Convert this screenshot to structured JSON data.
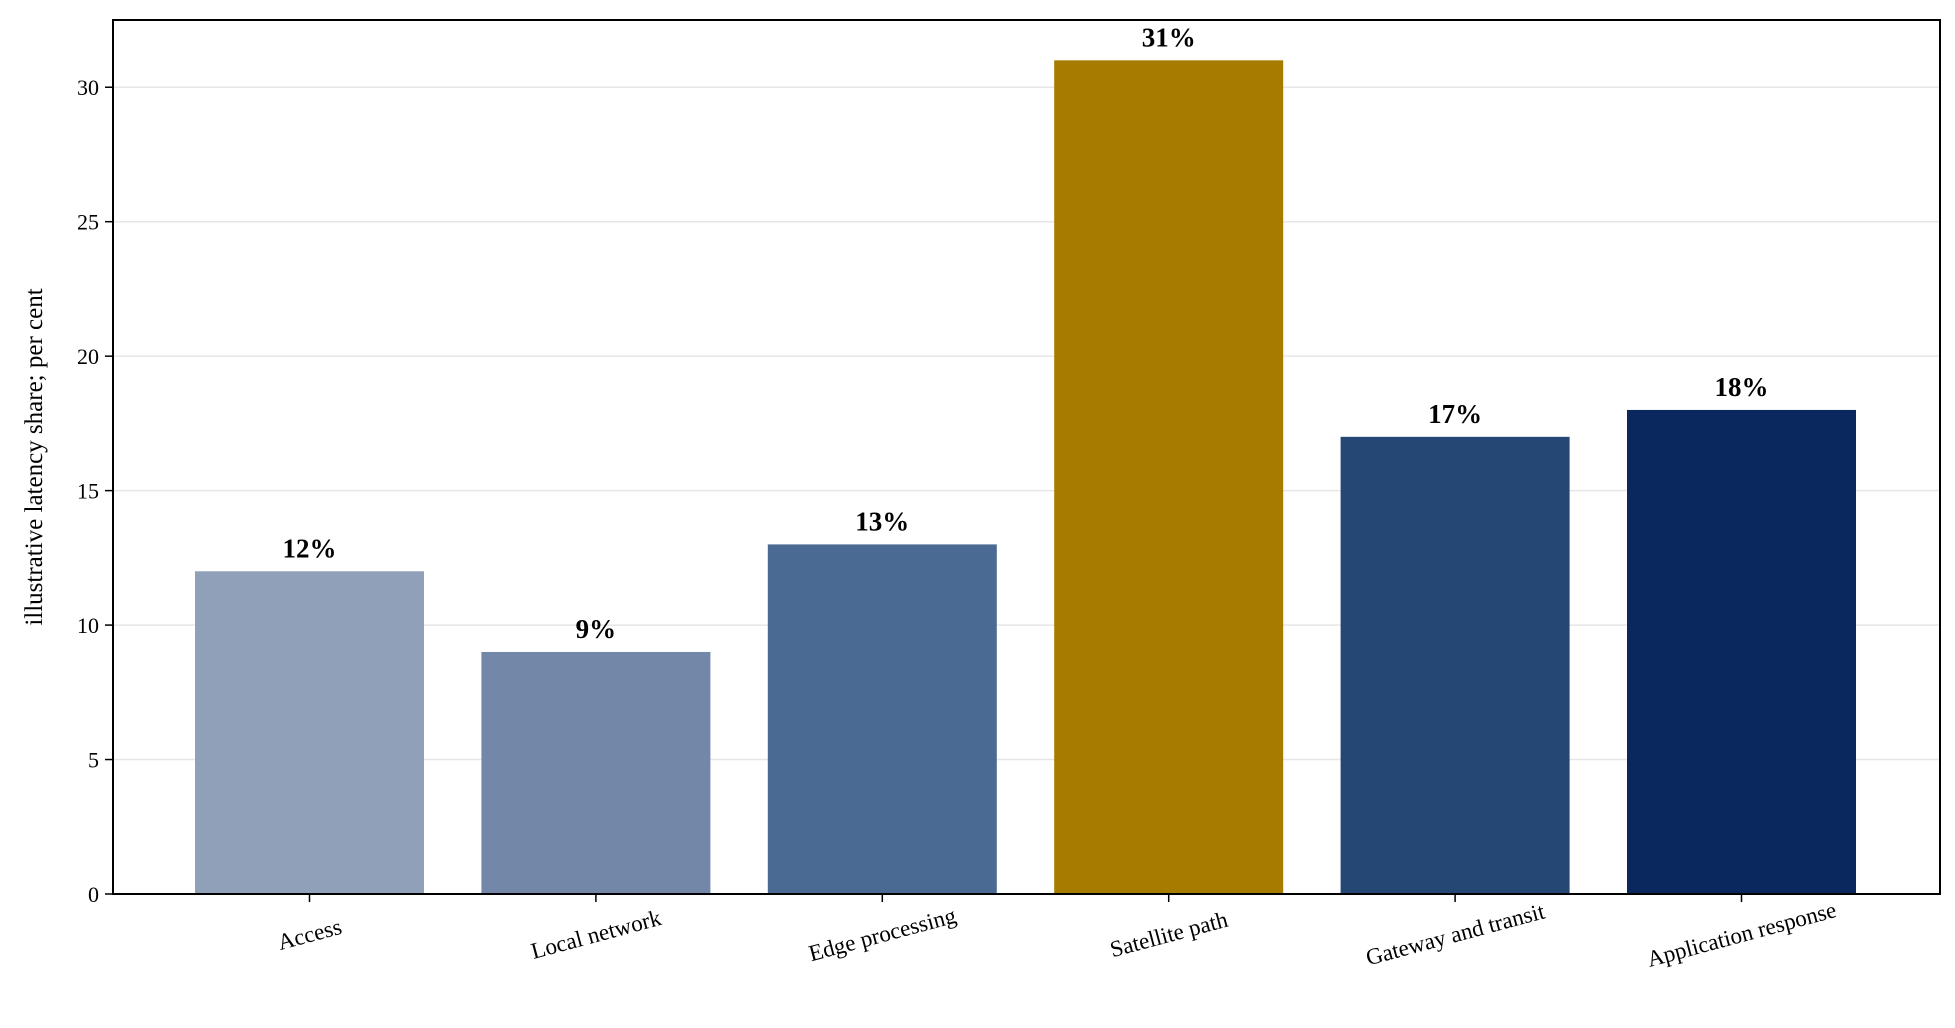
{
  "chart_data": {
    "type": "bar",
    "categories": [
      "Access",
      "Local network",
      "Edge processing",
      "Satellite path",
      "Gateway and transit",
      "Application response"
    ],
    "values": [
      12,
      9,
      13,
      31,
      17,
      18
    ],
    "value_labels": [
      "12%",
      "9%",
      "13%",
      "31%",
      "17%",
      "18%"
    ],
    "colors": [
      "#8fa0b8",
      "#7388a8",
      "#4a6a94",
      "#a67c00",
      "#244773",
      "#0b285e"
    ],
    "ylabel": "illustrative latency share; per cent",
    "xlabel": "",
    "title": "",
    "ylim": [
      0,
      32.5
    ],
    "yticks": [
      0,
      5,
      10,
      15,
      20,
      25,
      30
    ],
    "ytick_labels": [
      "0",
      "5",
      "10",
      "15",
      "20",
      "25",
      "30"
    ],
    "grid": "horizontal",
    "legend": "none"
  }
}
